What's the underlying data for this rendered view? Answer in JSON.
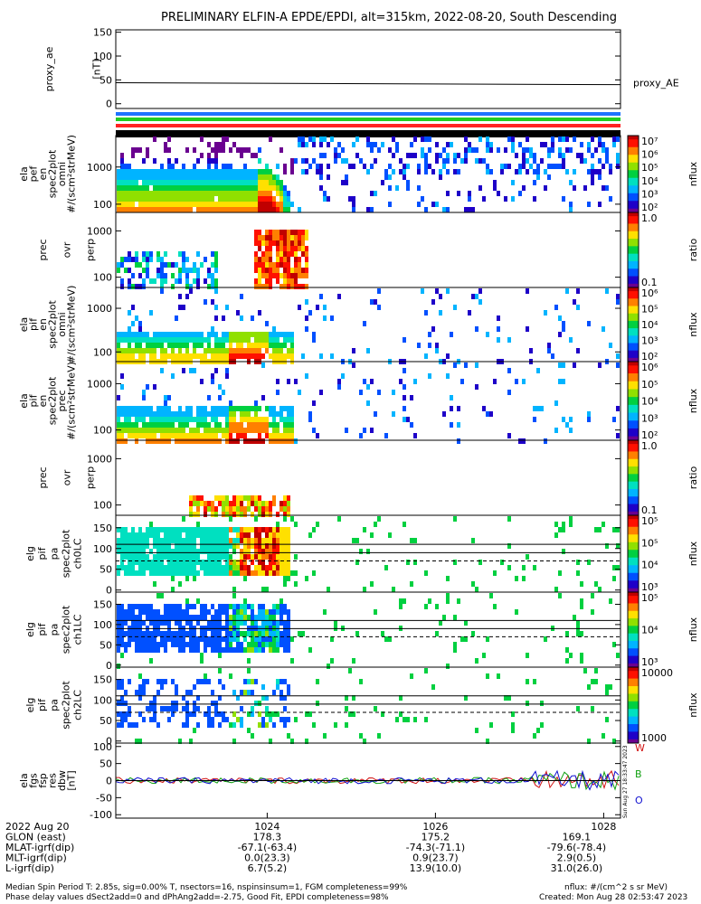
{
  "title": "PRELIMINARY ELFIN-A EPDE/EPDI, alt=315km, 2022-08-20, South Descending",
  "colors": {
    "status_bars": [
      "#1e73ff",
      "#22cc22",
      "#ff2222",
      "#000000"
    ],
    "spectrogram_scale": [
      "#6a0090",
      "#1e00c8",
      "#0050ff",
      "#00b4ff",
      "#00e0c0",
      "#00d040",
      "#90e000",
      "#ffe000",
      "#ff8000",
      "#ff1000",
      "#c00000"
    ],
    "field_components": {
      "W": "#d01010",
      "B": "#10a010",
      "O": "#1010d0"
    }
  },
  "chart_data": [
    {
      "id": "proxy_ae",
      "type": "line",
      "ylabel": [
        "proxy_ae",
        "[nT]"
      ],
      "yticks": [
        0,
        50,
        100,
        150
      ],
      "ylim": [
        -10,
        155
      ],
      "legend": "proxy_AE",
      "x": [
        1022.2,
        1028.2
      ],
      "y": [
        44,
        40
      ]
    },
    {
      "id": "ela_pef_omni",
      "type": "heatmap",
      "ylabel": [
        "ela",
        "pef",
        "en",
        "spec2plot",
        "omni",
        "#/(scm²strMeV)"
      ],
      "yticks": [
        100,
        1000
      ],
      "ylim": [
        60,
        7000
      ],
      "yscale": "log",
      "colorbar": {
        "label": "nflux",
        "ticks": [
          "10⁷",
          "10⁶",
          "10⁵",
          "10⁴",
          "10³",
          "10²"
        ]
      }
    },
    {
      "id": "ela_e_prec_ovr_perp",
      "type": "heatmap",
      "ylabel": [
        "prec",
        "ovr",
        "perp"
      ],
      "yticks": [
        100,
        1000
      ],
      "ylim": [
        60,
        2500
      ],
      "yscale": "log",
      "colorbar": {
        "label": "ratio",
        "ticks": [
          "1.0",
          "0.1"
        ]
      }
    },
    {
      "id": "ela_pif_omni",
      "type": "heatmap",
      "ylabel": [
        "ela",
        "pif",
        "en",
        "spec2plot",
        "omni",
        "#/(scm²strMeV)"
      ],
      "yticks": [
        100,
        1000
      ],
      "ylim": [
        60,
        3000
      ],
      "yscale": "log",
      "colorbar": {
        "label": "nflux",
        "ticks": [
          "10⁶",
          "10⁵",
          "10⁴",
          "10³",
          "10²"
        ]
      }
    },
    {
      "id": "ela_pif_prec",
      "type": "heatmap",
      "ylabel": [
        "ela",
        "pif",
        "en",
        "spec2plot",
        "prec",
        "#/(scm²strMeV)"
      ],
      "yticks": [
        100,
        1000
      ],
      "ylim": [
        60,
        3000
      ],
      "yscale": "log",
      "colorbar": {
        "label": "nflux",
        "ticks": [
          "10⁶",
          "10⁵",
          "10⁴",
          "10³",
          "10²"
        ]
      }
    },
    {
      "id": "ela_i_prec_ovr_perp",
      "type": "heatmap",
      "ylabel": [
        "prec",
        "ovr",
        "perp"
      ],
      "yticks": [
        100,
        1000
      ],
      "ylim": [
        60,
        2500
      ],
      "yscale": "log",
      "colorbar": {
        "label": "ratio",
        "ticks": [
          "1.0",
          "0.1"
        ]
      }
    },
    {
      "id": "ela_pif_pa_ch0LC",
      "type": "heatmap",
      "ylabel": [
        "elg",
        "pif",
        "pa",
        "spec2plot",
        "ch0LC"
      ],
      "yticks": [
        0,
        50,
        100,
        150
      ],
      "ylim": [
        -5,
        180
      ],
      "colorbar": {
        "label": "nflux",
        "ticks": [
          "10⁵",
          "10⁵",
          "10⁴",
          "10³"
        ]
      }
    },
    {
      "id": "ela_pif_pa_ch1LC",
      "type": "heatmap",
      "ylabel": [
        "elg",
        "pif",
        "pa",
        "spec2plot",
        "ch1LC"
      ],
      "yticks": [
        0,
        50,
        100,
        150
      ],
      "ylim": [
        -5,
        180
      ],
      "colorbar": {
        "label": "nflux",
        "ticks": [
          "10⁵",
          "10⁴",
          "10³"
        ]
      }
    },
    {
      "id": "ela_pif_pa_ch2LC",
      "type": "heatmap",
      "ylabel": [
        "elg",
        "pif",
        "pa",
        "spec2plot",
        "ch2LC"
      ],
      "yticks": [
        0,
        50,
        100,
        150
      ],
      "ylim": [
        -5,
        180
      ],
      "colorbar": {
        "label": "nflux",
        "ticks": [
          "10000",
          "1000"
        ]
      }
    },
    {
      "id": "ela_fgs_res_dbw",
      "type": "line",
      "ylabel": [
        "ela",
        "fgs",
        "fsp",
        "res",
        "dbw",
        "[nT]"
      ],
      "yticks": [
        -100,
        -50,
        0,
        50,
        100
      ],
      "ylim": [
        -110,
        110
      ],
      "legend": [
        "W",
        "B",
        "O"
      ]
    }
  ],
  "xaxis": {
    "ticks": [
      "1024",
      "1026",
      "1028"
    ],
    "rows": [
      {
        "label": "2022 Aug 20",
        "values": [
          "",
          "",
          ""
        ]
      },
      {
        "label": "GLON (east)",
        "values": [
          "178.3",
          "175.2",
          "169.1"
        ]
      },
      {
        "label": "MLAT-igrf(dip)",
        "values": [
          "-67.1(-63.4)",
          "-74.3(-71.1)",
          "-79.6(-78.4)"
        ]
      },
      {
        "label": "MLT-igrf(dip)",
        "values": [
          "0.0(23.3)",
          "0.9(23.7)",
          "2.9(0.5)"
        ]
      },
      {
        "label": "L-igrf(dip)",
        "values": [
          "6.7(5.2)",
          "13.9(10.0)",
          "31.0(26.0)"
        ]
      }
    ]
  },
  "footer": {
    "left1": "Median Spin Period T: 2.85s, sig=0.00% T, nsectors=16, nspinsinsum=1, FGM completeness=99%",
    "left2": "Phase delay values dSect2add=0 and dPhAng2add=-2.75, Good Fit, EPDI completeness=98%",
    "right1": "nflux: #/(cm^2 s sr MeV)",
    "right2": "Created: Mon Aug 28 02:53:47 2023"
  },
  "timestamp_side": "Sun Aug 27 18:33:47 2023"
}
